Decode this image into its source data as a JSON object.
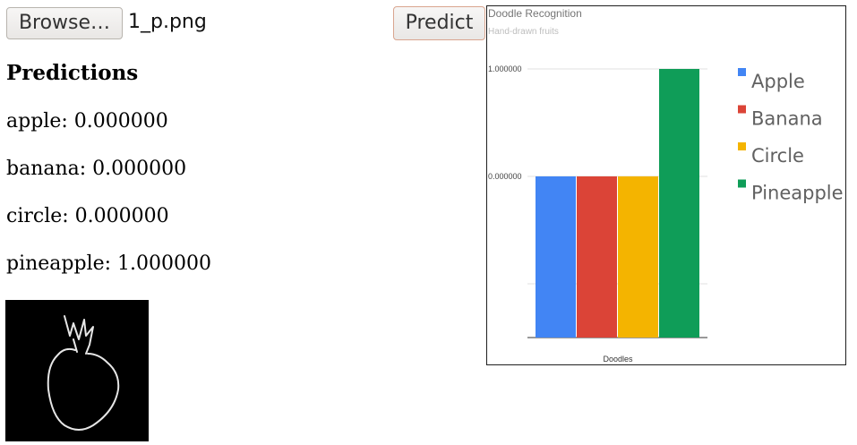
{
  "file_input": {
    "browse_label": "Browse…",
    "file_name": "1_p.png"
  },
  "predict_label": "Predict",
  "predictions": {
    "heading": "Predictions",
    "lines": [
      "apple: 0.000000",
      "banana: 0.000000",
      "circle: 0.000000",
      "pineapple: 1.000000"
    ]
  },
  "doodle_image": {
    "background": "#000000",
    "stroke": "#e6e6e6",
    "subject": "pineapple"
  },
  "chart_data": {
    "type": "bar",
    "title": "Doodle Recognition",
    "subtitle": "Hand-drawn fruits",
    "xlabel": "Doodles",
    "ylabel": "",
    "categories": [
      "Doodles"
    ],
    "series": [
      {
        "name": "Apple",
        "values": [
          0.0
        ],
        "color": "#4285f4"
      },
      {
        "name": "Banana",
        "values": [
          0.0
        ],
        "color": "#db4437"
      },
      {
        "name": "Circle",
        "values": [
          0.0
        ],
        "color": "#f4b400"
      },
      {
        "name": "Pineapple",
        "values": [
          1.0
        ],
        "color": "#0f9d58"
      }
    ],
    "y_ticks": [
      {
        "value": 1.0,
        "label": "1.000000"
      },
      {
        "value": 0.0,
        "label": "0.000000"
      }
    ],
    "ylim": [
      -1.5,
      1.0
    ],
    "grid": true,
    "legend_position": "right"
  }
}
